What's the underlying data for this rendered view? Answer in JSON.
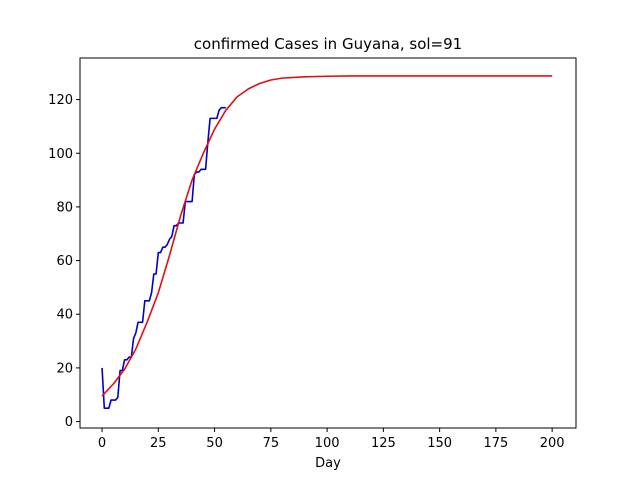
{
  "chart_data": {
    "type": "line",
    "title": "confirmed Cases in Guyana, sol=91",
    "xlabel": "Day",
    "ylabel": "",
    "xlim": [
      -9.8,
      210.6
    ],
    "ylim": [
      -2.4,
      135.5
    ],
    "xticks": [
      0,
      25,
      50,
      75,
      100,
      125,
      150,
      175,
      200
    ],
    "yticks": [
      0,
      20,
      40,
      60,
      80,
      100,
      120
    ],
    "grid": false,
    "series": [
      {
        "color": "#0000cc",
        "x": [
          0,
          1,
          2,
          3,
          4,
          5,
          6,
          7,
          8,
          9,
          10,
          11,
          12,
          13,
          14,
          15,
          16,
          17,
          18,
          19,
          20,
          21,
          22,
          23,
          24,
          25,
          26,
          27,
          28,
          29,
          30,
          31,
          32,
          33,
          34,
          35,
          36,
          37,
          38,
          39,
          40,
          41,
          42,
          43,
          44,
          45,
          46,
          47,
          48,
          49,
          50,
          51,
          52,
          53,
          54,
          55
        ],
        "y": [
          20,
          5,
          5,
          5,
          8,
          8,
          8,
          9,
          19,
          19,
          23,
          23,
          24,
          24,
          31,
          33,
          37,
          37,
          37,
          45,
          45,
          45,
          48,
          55,
          55,
          63,
          63,
          65,
          65,
          66,
          68,
          69,
          73,
          73,
          74,
          74,
          74,
          82,
          82,
          82,
          82,
          92,
          93,
          93,
          94,
          94,
          94,
          104,
          113,
          113,
          113,
          113,
          116,
          117,
          117,
          117
        ]
      },
      {
        "color": "#e01010",
        "x": [
          0,
          5,
          10,
          15,
          20,
          25,
          30,
          35,
          40,
          45,
          50,
          55,
          60,
          65,
          70,
          75,
          80,
          90,
          100,
          110,
          125,
          150,
          175,
          200
        ],
        "y": [
          9.5,
          14,
          19.5,
          27,
          37,
          48,
          62,
          77,
          90,
          100,
          109,
          116,
          121,
          124,
          126,
          127.3,
          128,
          128.5,
          128.7,
          128.8,
          128.8,
          128.8,
          128.8,
          128.8
        ]
      }
    ]
  }
}
